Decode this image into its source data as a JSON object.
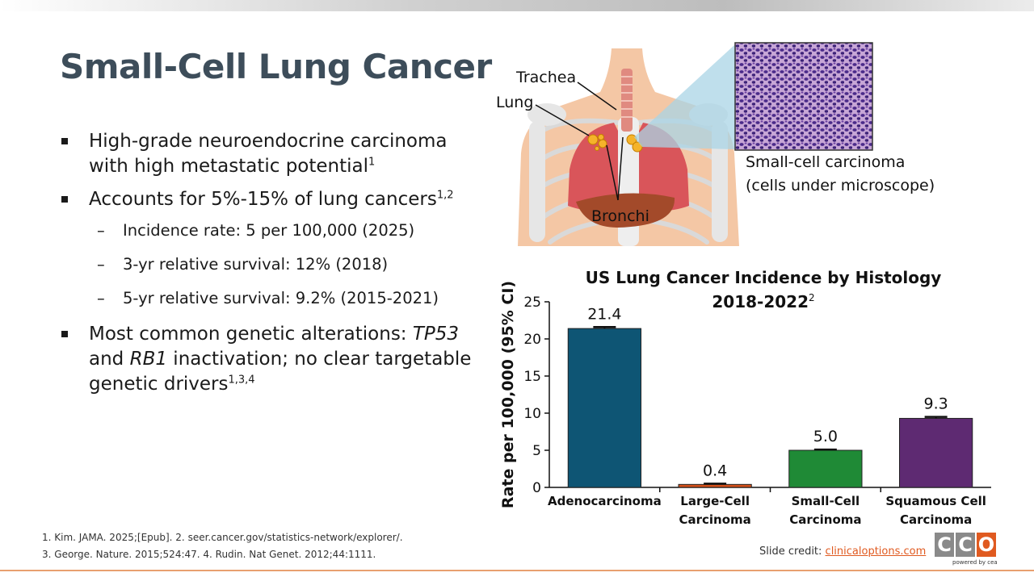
{
  "slide": {
    "title": "Small-Cell Lung Cancer",
    "bullets": [
      {
        "text": "High-grade neuroendocrine carcinoma with high metastatic potential",
        "refs": "1"
      },
      {
        "text": "Accounts for 5%-15% of lung cancers",
        "refs": "1,2"
      },
      {
        "text": "Incidence rate: 5 per 100,000 (2025)",
        "refs": ""
      },
      {
        "text": "3-yr relative survival: 12% (2018)",
        "refs": ""
      },
      {
        "text": "5-yr relative survival: 9.2% (2015-2021)",
        "refs": ""
      },
      {
        "text_parts": [
          "TP53",
          " and ",
          "RB1",
          " inactivation; no clear targetable genetic drivers"
        ],
        "lead": "Most common genetic alterations: ",
        "refs": "1,3,4"
      }
    ]
  },
  "figure": {
    "labels": {
      "trachea": "Trachea",
      "lung": "Lung",
      "bronchi": "Bronchi",
      "micro_line1": "Small-cell carcinoma",
      "micro_line2": "(cells under microscope)"
    }
  },
  "chart_data": {
    "type": "bar",
    "title": "US Lung Cancer Incidence by Histology",
    "subtitle": "2018-2022",
    "subtitle_ref": "2",
    "ylabel": "Rate per 100,000 (95% CI)",
    "xlabel": "",
    "ylim": [
      0,
      25
    ],
    "yticks": [
      0,
      5,
      10,
      15,
      20,
      25
    ],
    "categories": [
      "Adenocarcinoma",
      "Large-Cell Carcinoma",
      "Small-Cell Carcinoma",
      "Squamous Cell Carcinoma"
    ],
    "category_lines": [
      [
        "Adenocarcinoma"
      ],
      [
        "Large-Cell",
        "Carcinoma"
      ],
      [
        "Small-Cell",
        "Carcinoma"
      ],
      [
        "Squamous Cell",
        "Carcinoma"
      ]
    ],
    "values": [
      21.4,
      0.4,
      5.0,
      9.3
    ],
    "value_labels": [
      "21.4",
      "0.4",
      "5.0",
      "9.3"
    ],
    "ci_upper": [
      21.6,
      0.5,
      5.1,
      9.5
    ],
    "colors": [
      "#0e5574",
      "#d4501a",
      "#1f8a36",
      "#5e2a72"
    ],
    "grid": false
  },
  "footnotes": {
    "line1": "1. Kim. JAMA. 2025;[Epub]. 2. seer.cancer.gov/statistics-network/explorer/.",
    "line2": "3. George. Nature. 2015;524:47. 4. Rudin. Nat Genet. 2012;44:1111."
  },
  "credit": {
    "prefix": "Slide credit: ",
    "link": "clinicaloptions.com"
  },
  "logo": {
    "letters": [
      "C",
      "C",
      "O"
    ],
    "tagline": "powered by cea",
    "colors": [
      "#8a8a8a",
      "#8a8a8a",
      "#e05a20"
    ]
  }
}
